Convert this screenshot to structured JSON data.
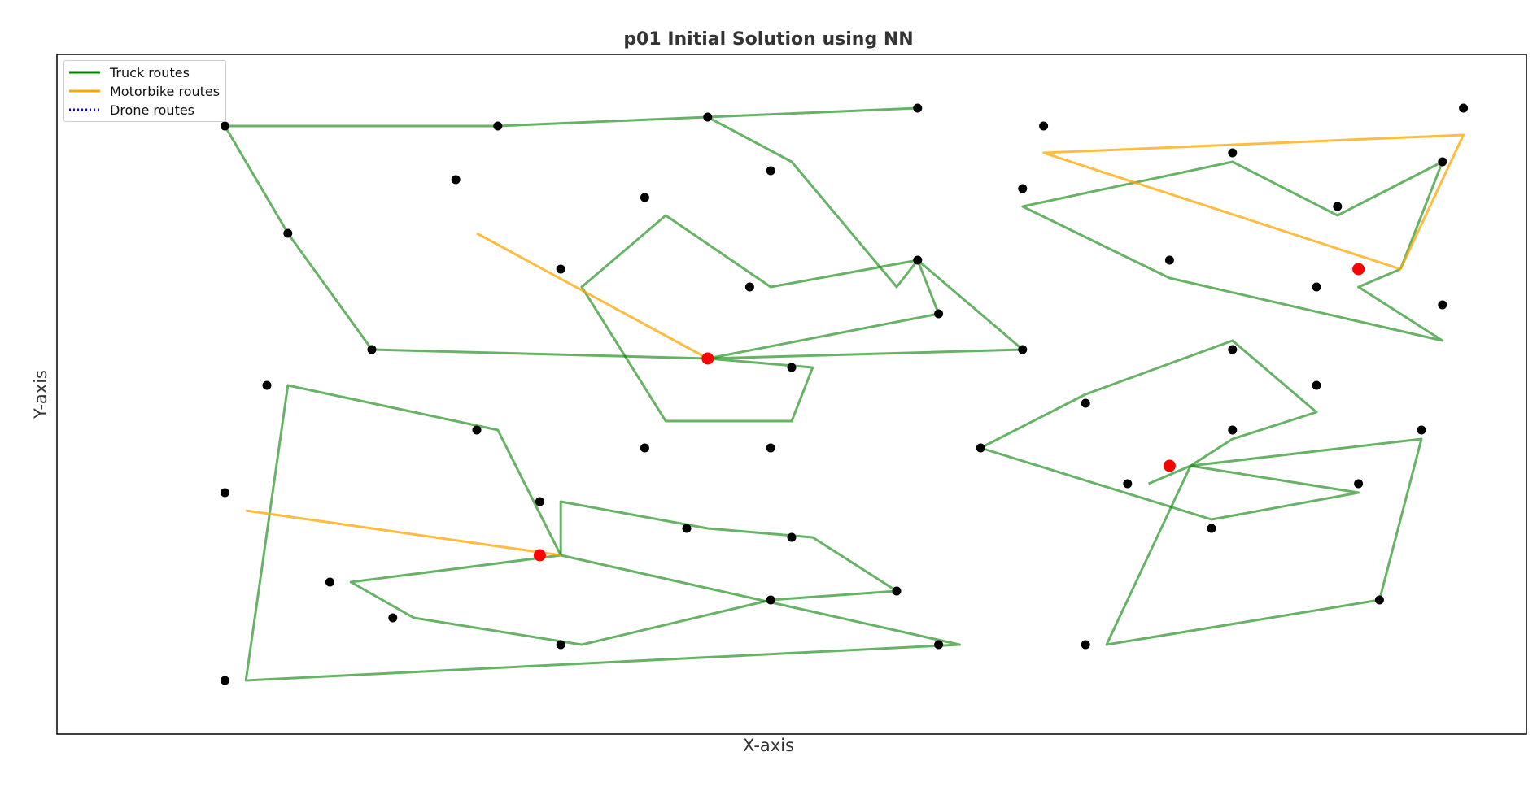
{
  "chart_data": {
    "type": "scatter",
    "title": "p01 Initial Solution using NN",
    "xlabel": "X-axis",
    "ylabel": "Y-axis",
    "xlim": [
      -0.5,
      69.5
    ],
    "ylim": [
      2,
      78
    ],
    "ticks_visible": false,
    "grid": false,
    "legend_position": "top-left",
    "legend": [
      {
        "label": "Truck routes",
        "color": "#008000",
        "style": "solid"
      },
      {
        "label": "Motorbike routes",
        "color": "#FFA500",
        "style": "solid"
      },
      {
        "label": "Drone routes",
        "color": "#0000FF",
        "style": "dotted"
      }
    ],
    "depots": [
      {
        "x": 30.5,
        "y": 44.0
      },
      {
        "x": 22.5,
        "y": 22.0
      },
      {
        "x": 61.5,
        "y": 54.0
      },
      {
        "x": 52.5,
        "y": 32.0
      }
    ],
    "customers": [
      [
        40.5,
        72.0
      ],
      [
        30.5,
        71.0
      ],
      [
        20.5,
        70.0
      ],
      [
        7.5,
        70.0
      ],
      [
        33.5,
        65.0
      ],
      [
        18.5,
        64.0
      ],
      [
        27.5,
        62.0
      ],
      [
        10.5,
        58.0
      ],
      [
        40.5,
        55.0
      ],
      [
        32.5,
        52.0
      ],
      [
        23.5,
        54.0
      ],
      [
        41.5,
        49.0
      ],
      [
        14.5,
        45.0
      ],
      [
        45.5,
        45.0
      ],
      [
        34.5,
        43.0
      ],
      [
        9.5,
        41.0
      ],
      [
        19.5,
        36.0
      ],
      [
        27.5,
        34.0
      ],
      [
        33.5,
        34.0
      ],
      [
        7.5,
        29.0
      ],
      [
        22.5,
        28.0
      ],
      [
        29.5,
        25.0
      ],
      [
        34.5,
        24.0
      ],
      [
        12.5,
        19.0
      ],
      [
        39.5,
        18.0
      ],
      [
        33.5,
        17.0
      ],
      [
        15.5,
        15.0
      ],
      [
        23.5,
        12.0
      ],
      [
        41.5,
        12.0
      ],
      [
        7.5,
        8.0
      ],
      [
        46.5,
        70.0
      ],
      [
        66.5,
        72.0
      ],
      [
        55.5,
        67.0
      ],
      [
        65.5,
        66.0
      ],
      [
        60.5,
        61.0
      ],
      [
        45.5,
        63.0
      ],
      [
        52.5,
        55.0
      ],
      [
        59.5,
        52.0
      ],
      [
        65.5,
        50.0
      ],
      [
        55.5,
        45.0
      ],
      [
        59.5,
        41.0
      ],
      [
        48.5,
        39.0
      ],
      [
        55.5,
        36.0
      ],
      [
        64.5,
        36.0
      ],
      [
        43.5,
        34.0
      ],
      [
        50.5,
        30.0
      ],
      [
        61.5,
        30.0
      ],
      [
        54.5,
        25.0
      ],
      [
        62.5,
        17.0
      ],
      [
        48.5,
        12.0
      ]
    ],
    "routes": [
      {
        "mode": "truck",
        "points": [
          [
            30.5,
            44.0
          ],
          [
            45.5,
            45.0
          ],
          [
            40.5,
            55.0
          ],
          [
            39.5,
            52.0
          ],
          [
            34.5,
            66.0
          ],
          [
            30.5,
            71.0
          ],
          [
            40.5,
            72.0
          ],
          [
            20.5,
            70.0
          ],
          [
            7.5,
            70.0
          ],
          [
            10.5,
            58.0
          ],
          [
            14.5,
            45.0
          ],
          [
            30.5,
            44.0
          ]
        ]
      },
      {
        "mode": "truck",
        "points": [
          [
            30.5,
            44.0
          ],
          [
            41.5,
            49.0
          ],
          [
            40.5,
            55.0
          ],
          [
            33.5,
            52.0
          ],
          [
            28.5,
            60.0
          ],
          [
            24.5,
            52.0
          ],
          [
            28.5,
            37.0
          ],
          [
            34.5,
            37.0
          ],
          [
            35.5,
            43.0
          ],
          [
            30.5,
            44.0
          ]
        ]
      },
      {
        "mode": "motorbike",
        "points": [
          [
            30.5,
            44.0
          ],
          [
            19.5,
            58.0
          ]
        ]
      },
      {
        "mode": "truck",
        "points": [
          [
            23.5,
            22.0
          ],
          [
            23.5,
            28.0
          ],
          [
            30.5,
            25.0
          ],
          [
            35.5,
            24.0
          ],
          [
            39.5,
            18.0
          ],
          [
            33.5,
            17.0
          ],
          [
            24.5,
            12.0
          ],
          [
            16.5,
            15.0
          ],
          [
            13.5,
            19.0
          ],
          [
            23.5,
            22.0
          ]
        ]
      },
      {
        "mode": "truck",
        "points": [
          [
            23.5,
            22.0
          ],
          [
            20.5,
            36.0
          ],
          [
            10.5,
            41.0
          ],
          [
            8.5,
            8.0
          ],
          [
            42.5,
            12.0
          ],
          [
            23.5,
            22.0
          ]
        ]
      },
      {
        "mode": "motorbike",
        "points": [
          [
            23.5,
            22.0
          ],
          [
            8.5,
            27.0
          ]
        ]
      },
      {
        "mode": "truck",
        "points": [
          [
            63.5,
            54.0
          ],
          [
            65.5,
            66.0
          ],
          [
            60.5,
            60.0
          ],
          [
            55.5,
            66.0
          ],
          [
            45.5,
            61.0
          ],
          [
            52.5,
            53.0
          ],
          [
            65.5,
            46.0
          ],
          [
            61.5,
            52.0
          ],
          [
            63.5,
            54.0
          ]
        ]
      },
      {
        "mode": "motorbike",
        "points": [
          [
            63.5,
            54.0
          ],
          [
            46.5,
            67.0
          ],
          [
            66.5,
            69.0
          ],
          [
            63.5,
            54.0
          ]
        ]
      },
      {
        "mode": "truck",
        "points": [
          [
            53.5,
            32.0
          ],
          [
            55.5,
            35.0
          ],
          [
            59.5,
            38.0
          ],
          [
            55.5,
            46.0
          ],
          [
            48.5,
            40.0
          ],
          [
            43.5,
            34.0
          ],
          [
            54.5,
            26.0
          ],
          [
            61.5,
            29.0
          ],
          [
            53.5,
            32.0
          ]
        ]
      },
      {
        "mode": "truck",
        "points": [
          [
            53.5,
            32.0
          ],
          [
            51.5,
            30.0
          ]
        ]
      },
      {
        "mode": "truck",
        "points": [
          [
            53.5,
            32.0
          ],
          [
            64.5,
            35.0
          ],
          [
            62.5,
            17.0
          ],
          [
            49.5,
            12.0
          ],
          [
            53.5,
            32.0
          ]
        ]
      }
    ]
  }
}
